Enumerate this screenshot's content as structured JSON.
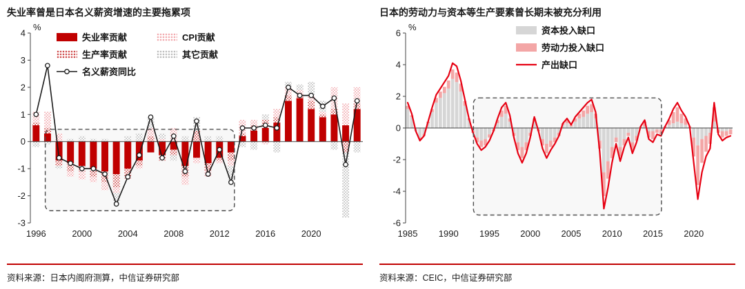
{
  "page": {
    "background": "#ffffff",
    "accent_red": "#c00000",
    "colors": {
      "solid-red": "#c00000",
      "stipple-red": "#cf4b4b",
      "stipple-pink": "#f2a9ae",
      "stipple-gray": "#bdbdbd",
      "solid-gray": "#d6d6d6",
      "solid-pink": "#f3a6a6",
      "line-red": "#e60012",
      "line-black": "#1a1a1a"
    }
  },
  "chart_data": [
    {
      "type": "bar",
      "subtype": "stacked-bar-with-line",
      "title": "失业率曾是日本名义薪资增速的主要拖累项",
      "source": "资料来源：日本内阁府测算，中信证券研究部",
      "ylabel": "%",
      "ylim": [
        -3,
        4
      ],
      "yticks": [
        4,
        3,
        2,
        1,
        0,
        -1,
        -2,
        -3
      ],
      "xticks": [
        1996,
        2000,
        2004,
        2008,
        2012,
        2016,
        2020
      ],
      "years": [
        1996,
        1997,
        1998,
        1999,
        2000,
        2001,
        2002,
        2003,
        2004,
        2005,
        2006,
        2007,
        2008,
        2009,
        2010,
        2011,
        2012,
        2013,
        2014,
        2015,
        2016,
        2017,
        2018,
        2019,
        2020,
        2021,
        2022,
        2023,
        2024
      ],
      "series": [
        {
          "name": "失业率贡献",
          "style": "solid-red",
          "values": [
            0.6,
            0.3,
            -0.7,
            -0.8,
            -0.9,
            -1.0,
            -1.1,
            -1.2,
            -1.0,
            -0.7,
            -0.4,
            -0.5,
            -0.3,
            -0.9,
            -0.6,
            -0.8,
            -0.6,
            -0.4,
            0.2,
            0.4,
            0.5,
            0.7,
            1.5,
            1.6,
            1.2,
            0.9,
            1.0,
            0.6,
            1.2
          ]
        },
        {
          "name": "生产率贡献",
          "style": "stipple-red",
          "values": [
            0.1,
            0.2,
            -0.2,
            -0.3,
            -0.2,
            -0.3,
            -0.4,
            -0.5,
            -0.3,
            -0.2,
            0.2,
            -0.2,
            -0.2,
            -0.4,
            0.4,
            -0.3,
            -0.1,
            -0.3,
            0.1,
            0.2,
            0.3,
            0.2,
            0.2,
            0.1,
            0.3,
            0.1,
            0.2,
            -0.4,
            0.2
          ]
        },
        {
          "name": "CPI贡献",
          "style": "stipple-pink",
          "values": [
            0.4,
            0.6,
            0.3,
            -0.2,
            -0.3,
            -0.2,
            -0.3,
            -0.2,
            -0.1,
            -0.1,
            0.3,
            0.1,
            0.5,
            -0.3,
            -0.2,
            -0.2,
            -0.1,
            -0.2,
            0.5,
            0.2,
            -0.1,
            0.3,
            0.3,
            0.2,
            0.2,
            0.1,
            0.8,
            0.8,
            0.6
          ]
        },
        {
          "name": "其它贡献",
          "style": "stipple-gray",
          "values": [
            -0.2,
            -0.1,
            -0.1,
            0.1,
            0.2,
            0.1,
            0.1,
            -0.3,
            0.2,
            0.3,
            0.4,
            0.2,
            -0.2,
            0.2,
            0.5,
            0.2,
            0.2,
            -0.5,
            -0.2,
            -0.3,
            0.2,
            -0.4,
            0.2,
            0.2,
            0.5,
            0.4,
            -0.3,
            -2.4,
            -0.4
          ]
        }
      ],
      "line": {
        "name": "名义薪资同比",
        "style": "line-black-circle",
        "values": [
          1.0,
          2.8,
          -0.6,
          -0.8,
          -1.0,
          -1.0,
          -1.2,
          -2.3,
          -1.3,
          -0.5,
          0.9,
          -0.6,
          0.2,
          -1.1,
          0.75,
          -1.2,
          -0.3,
          -1.5,
          0.5,
          0.5,
          0.6,
          0.5,
          2.0,
          1.7,
          1.7,
          1.3,
          1.6,
          -0.85,
          1.5
        ]
      },
      "highlight_box": {
        "x0": 1997.3,
        "x1": 2013.8,
        "y0": -2.55,
        "y1": 0.45
      },
      "legend": [
        {
          "label": "失业率贡献",
          "style": "solid-red"
        },
        {
          "label": "CPI贡献",
          "style": "stipple-pink"
        },
        {
          "label": "生产率贡献",
          "style": "stipple-red"
        },
        {
          "label": "其它贡献",
          "style": "stipple-gray"
        },
        {
          "label": "名义薪资同比",
          "style": "line-black-circle"
        }
      ]
    },
    {
      "type": "bar",
      "subtype": "stacked-bar-with-line",
      "title": "日本的劳动力与资本等生产要素曾长期未被充分利用",
      "source": "资料来源：CEIC，中信证券研究部",
      "ylabel": "%",
      "ylim": [
        -6,
        6
      ],
      "yticks": [
        6,
        4,
        2,
        0,
        -2,
        -4,
        -6
      ],
      "xticks": [
        1985,
        1990,
        1995,
        2000,
        2005,
        2010,
        2015,
        2020
      ],
      "x_start": 1985,
      "x_step": 0.5,
      "series": [
        {
          "name": "资本投入缺口",
          "style": "solid-gray",
          "values": [
            1.2,
            0.7,
            -0.2,
            -0.6,
            -0.4,
            0.3,
            1.0,
            1.6,
            1.9,
            2.2,
            2.5,
            3.1,
            2.9,
            2.3,
            1.4,
            0.5,
            -0.2,
            -0.6,
            -0.8,
            -0.7,
            -0.4,
            -0.1,
            0.3,
            0.7,
            0.9,
            0.4,
            -0.3,
            -0.9,
            -1.2,
            -0.9,
            -0.3,
            0.4,
            -0.1,
            -0.7,
            -1.0,
            -0.8,
            -0.6,
            -0.3,
            0.2,
            0.3,
            0.1,
            0.4,
            0.6,
            0.7,
            0.9,
            1.0,
            0.6,
            -0.8,
            -2.8,
            -2.1,
            -1.2,
            -0.6,
            -1.2,
            -0.7,
            -0.3,
            -0.9,
            -0.5,
            0.1,
            0.1,
            -0.2,
            -0.2,
            -0.1,
            -0.1,
            0.0,
            0.2,
            0.3,
            0.4,
            0.3,
            0.2,
            0.0,
            -0.6,
            -1.1,
            -0.7,
            -0.5,
            -0.3,
            0.4,
            -0.1,
            -0.2,
            -0.2,
            -0.1
          ]
        },
        {
          "name": "劳动力投入缺口",
          "style": "solid-pink",
          "values": [
            0.2,
            0.1,
            0.0,
            -0.1,
            -0.1,
            0.1,
            0.2,
            0.3,
            0.4,
            0.4,
            0.5,
            0.6,
            0.6,
            0.5,
            0.3,
            0.1,
            -0.1,
            -0.3,
            -0.4,
            -0.4,
            -0.2,
            -0.1,
            0.2,
            0.4,
            0.5,
            0.2,
            -0.2,
            -0.5,
            -0.7,
            -0.5,
            -0.2,
            0.2,
            -0.1,
            -0.4,
            -0.6,
            -0.4,
            -0.3,
            -0.2,
            0.1,
            0.2,
            0.1,
            0.2,
            0.3,
            0.4,
            0.5,
            0.5,
            0.3,
            -0.5,
            -1.5,
            -1.1,
            -0.7,
            -0.3,
            -0.6,
            -0.4,
            -0.2,
            -0.5,
            -0.3,
            0.0,
            0.3,
            -0.4,
            -0.5,
            -0.2,
            -0.3,
            0.1,
            0.3,
            0.7,
            0.9,
            0.6,
            0.4,
            0.1,
            -1.2,
            -2.5,
            -1.5,
            -1.0,
            -0.7,
            0.9,
            -0.2,
            -0.4,
            -0.3,
            -0.3
          ]
        }
      ],
      "line": {
        "name": "产出缺口",
        "style": "line-red",
        "values": [
          1.6,
          0.9,
          -0.2,
          -0.8,
          -0.5,
          0.4,
          1.3,
          2.1,
          2.5,
          2.9,
          3.3,
          4.1,
          3.9,
          3.0,
          1.8,
          0.6,
          -0.3,
          -1.0,
          -1.4,
          -1.2,
          -0.8,
          -0.2,
          0.6,
          1.3,
          1.6,
          0.8,
          -0.6,
          -1.6,
          -2.2,
          -1.6,
          -0.6,
          0.7,
          -0.2,
          -1.3,
          -1.9,
          -1.4,
          -1.0,
          -0.5,
          0.3,
          0.6,
          0.2,
          0.7,
          1.0,
          1.3,
          1.6,
          1.8,
          1.0,
          -1.5,
          -5.1,
          -3.8,
          -2.2,
          -1.0,
          -2.1,
          -1.2,
          -0.6,
          -1.6,
          -0.9,
          0.1,
          0.5,
          -0.7,
          -0.9,
          -0.4,
          -0.5,
          0.1,
          0.6,
          1.2,
          1.6,
          1.1,
          0.7,
          0.1,
          -2.2,
          -4.5,
          -2.8,
          -1.8,
          -1.3,
          1.6,
          -0.4,
          -0.8,
          -0.6,
          -0.5
        ]
      },
      "highlight_box": {
        "x0": 1993.3,
        "x1": 2016.3,
        "y0": -5.5,
        "y1": 1.9
      },
      "legend": [
        {
          "label": "资本投入缺口",
          "style": "solid-gray"
        },
        {
          "label": "劳动力投入缺口",
          "style": "solid-pink"
        },
        {
          "label": "产出缺口",
          "style": "line-red"
        }
      ]
    }
  ]
}
